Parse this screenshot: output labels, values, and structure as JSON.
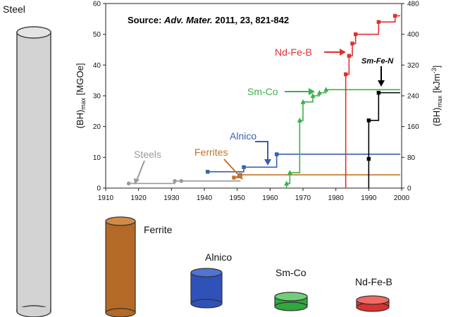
{
  "colors": {
    "steel": "#9a9a9a",
    "ferrite": "#c0732a",
    "alnico": "#3a5fb0",
    "smco": "#3cb04a",
    "ndfeb": "#e0302e",
    "smfen": "#000000"
  },
  "figure": {
    "source_prefix": "Source: ",
    "source_journal": "Adv. Mater.",
    "source_rest": " 2011, 23, 821-842",
    "cylinders": [
      {
        "label": "Steel",
        "relative_height": 1.0
      },
      {
        "label": "Ferrite",
        "relative_height": 0.42
      },
      {
        "label": "Alnico",
        "relative_height": 0.2
      },
      {
        "label": "Sm-Co",
        "relative_height": 0.05
      },
      {
        "label": "Nd-Fe-B",
        "relative_height": 0.03
      }
    ]
  },
  "chart_data": {
    "type": "line",
    "xlabel": "",
    "ylabel_left": "(BH)max [MGOe]",
    "ylabel_right": "(BH)max [kJm-3]",
    "xlim": [
      1910,
      2000
    ],
    "ylim": [
      0,
      60
    ],
    "ylim_right": [
      0,
      480
    ],
    "x_ticks": [
      1910,
      1920,
      1930,
      1940,
      1950,
      1960,
      1970,
      1980,
      1990,
      2000
    ],
    "y_ticks": [
      0,
      10,
      20,
      30,
      40,
      50,
      60
    ],
    "y_ticks_right": [
      0,
      80,
      160,
      240,
      320,
      400,
      480
    ],
    "series": [
      {
        "name": "Steels",
        "x": [
          1917,
          1931,
          1933
        ],
        "y": [
          1.5,
          2.3,
          2.3
        ]
      },
      {
        "name": "Ferrites",
        "x": [
          1949,
          1951
        ],
        "y": [
          3.4,
          4.3
        ]
      },
      {
        "name": "Alnico",
        "x": [
          1941,
          1952,
          1962
        ],
        "y": [
          5.3,
          6.8,
          11
        ]
      },
      {
        "name": "Sm-Co",
        "x": [
          1965,
          1966,
          1969,
          1970,
          1973,
          1975,
          1977
        ],
        "y": [
          1.5,
          5,
          22,
          28,
          30,
          31,
          32
        ]
      },
      {
        "name": "Nd-Fe-B",
        "x": [
          1983,
          1984,
          1985,
          1986,
          1993,
          1998
        ],
        "y": [
          37,
          43,
          47,
          50,
          54,
          56
        ]
      },
      {
        "name": "Sm-Fe-N",
        "x": [
          1990,
          1990,
          1993
        ],
        "y": [
          9.5,
          22,
          31
        ]
      }
    ]
  }
}
